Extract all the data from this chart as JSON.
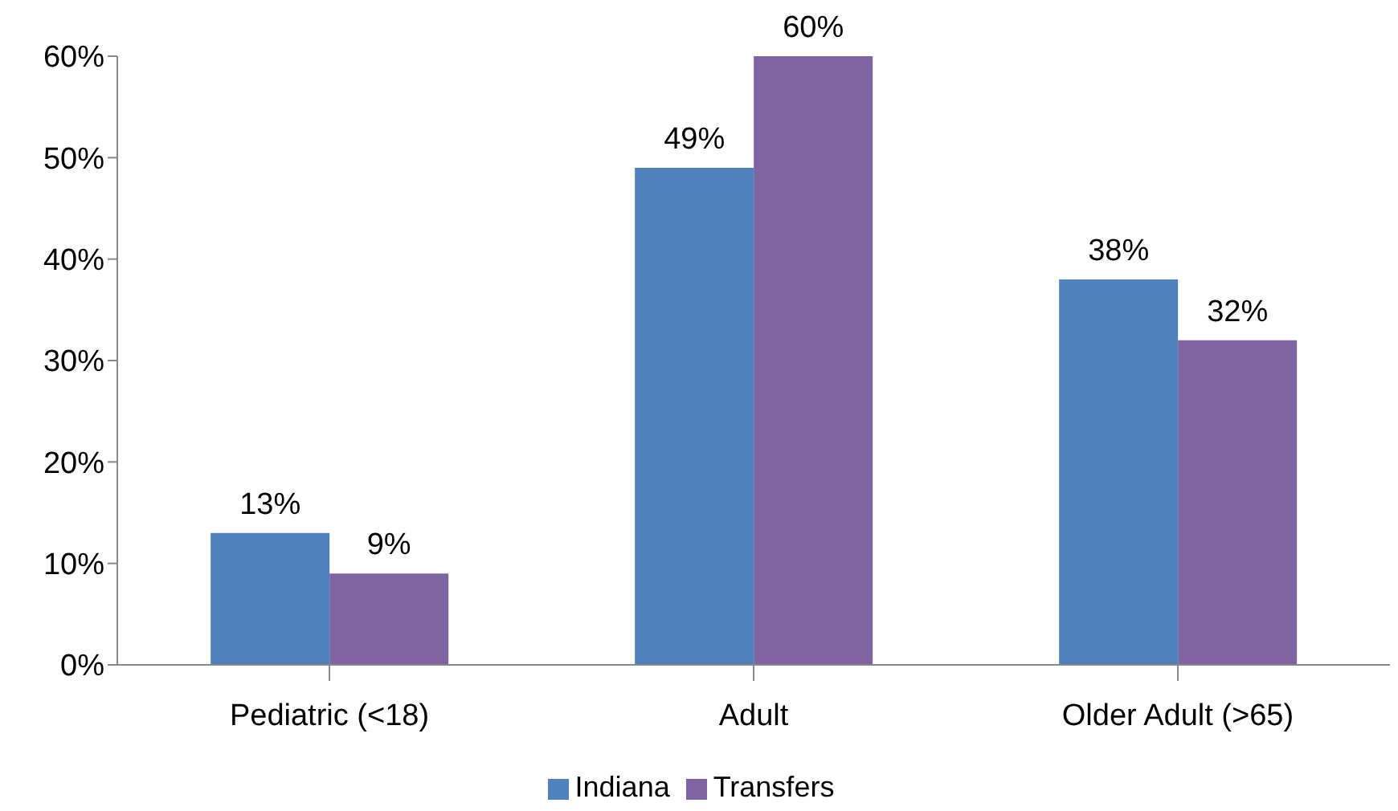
{
  "chart_data": {
    "type": "bar",
    "categories": [
      "Pediatric (<18)",
      "Adult",
      "Older Adult (>65)"
    ],
    "series": [
      {
        "name": "Indiana",
        "color": "#4f81bd",
        "values": [
          13,
          49,
          38
        ],
        "value_labels": [
          "13%",
          "49%",
          "38%"
        ]
      },
      {
        "name": "Transfers",
        "color": "#8064a2",
        "values": [
          9,
          60,
          32
        ],
        "value_labels": [
          "9%",
          "60%",
          "32%"
        ]
      }
    ],
    "ylim": [
      0,
      60
    ],
    "yticks": [
      {
        "value": 0,
        "label": "0%"
      },
      {
        "value": 10,
        "label": "10%"
      },
      {
        "value": 20,
        "label": "20%"
      },
      {
        "value": 30,
        "label": "30%"
      },
      {
        "value": 40,
        "label": "40%"
      },
      {
        "value": 50,
        "label": "50%"
      },
      {
        "value": 60,
        "label": "60%"
      }
    ],
    "grid": false,
    "legend": "bottom"
  }
}
